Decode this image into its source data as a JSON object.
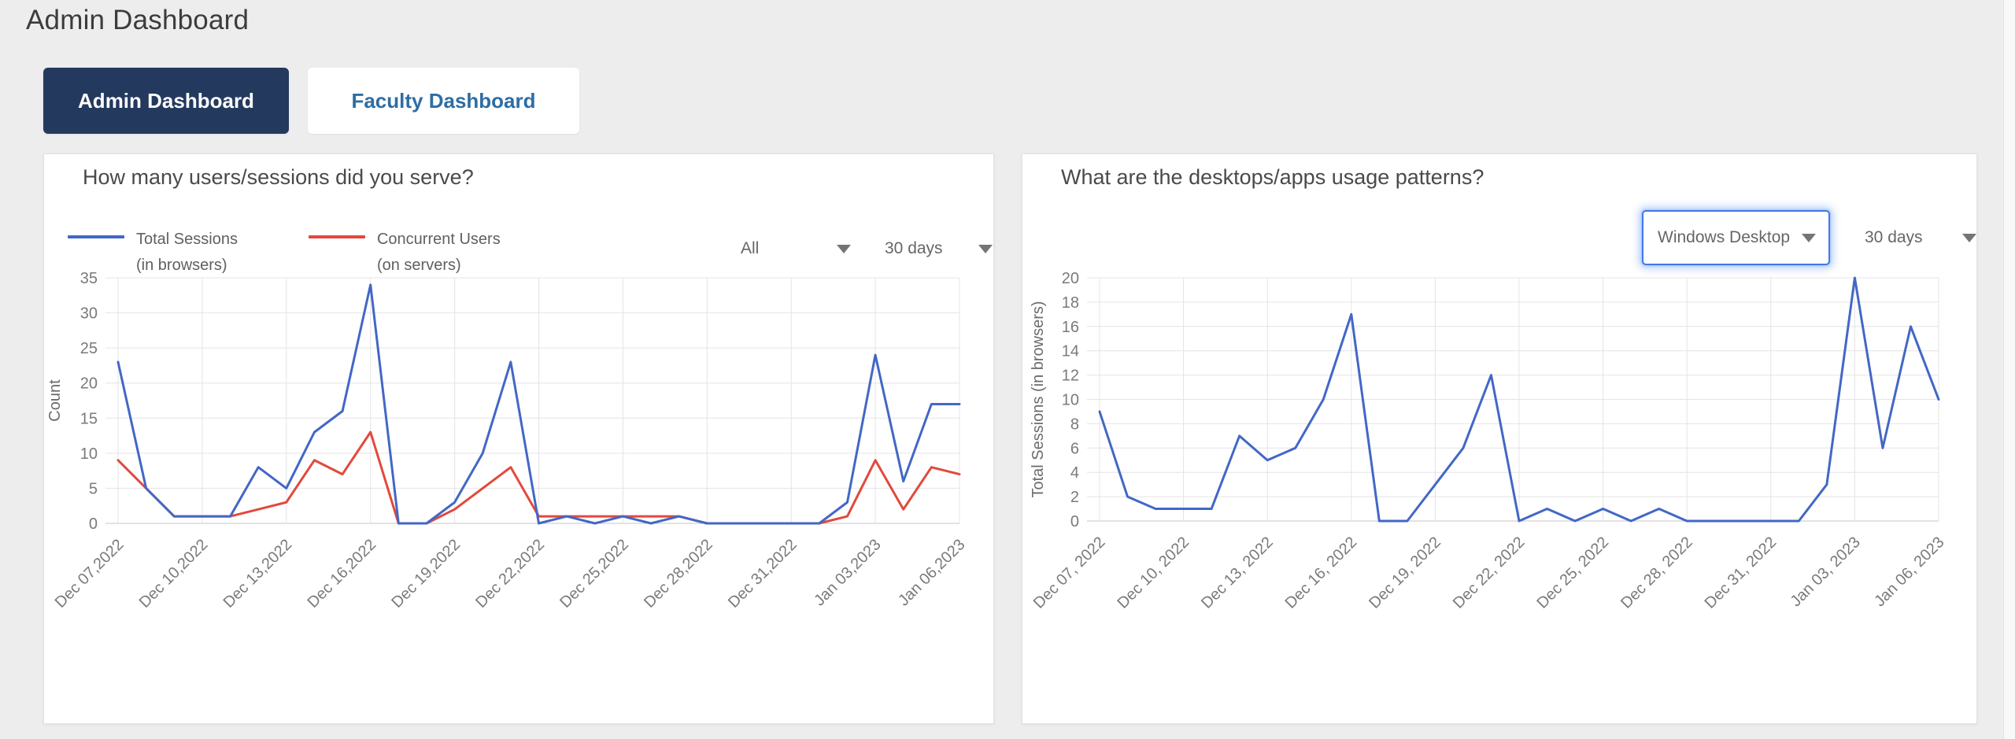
{
  "page": {
    "title": "Admin Dashboard",
    "background": "#EDEDED"
  },
  "tabs": [
    {
      "label": "Admin Dashboard",
      "active": true
    },
    {
      "label": "Faculty Dashboard",
      "active": false
    }
  ],
  "left_card": {
    "filters": {
      "scope": "All",
      "range": "30 days"
    }
  },
  "right_card": {
    "filters": {
      "desktop": "Windows Desktop",
      "range": "30 days"
    }
  },
  "colors": {
    "tab_active_bg": "#24395E",
    "tab_inactive_text": "#2E6DA4",
    "focus_ring": "#4285F4",
    "gridline": "#E4E4E4",
    "baseline": "#C6C6C6",
    "axis_text": "#7A7A7A"
  },
  "chart_data": [
    {
      "type": "line",
      "title": "How many users/sessions did you serve?",
      "ylabel": "Count",
      "ymax": 35,
      "ylim": [
        0,
        35
      ],
      "y_ticks": [
        0,
        5,
        10,
        15,
        20,
        25,
        30,
        35
      ],
      "grid": true,
      "legend_position": "top-left",
      "x_tick_interval_days": 3,
      "x_tick_labels": [
        "Dec 07,2022",
        "Dec 10,2022",
        "Dec 13,2022",
        "Dec 16,2022",
        "Dec 19,2022",
        "Dec 22,2022",
        "Dec 25,2022",
        "Dec 28,2022",
        "Dec 31,2022",
        "Jan 03,2023",
        "Jan 06,2023"
      ],
      "legend": [
        {
          "line1": "Total Sessions",
          "line2": "(in browsers)"
        },
        {
          "line1": "Concurrent Users",
          "line2": "(on servers)"
        }
      ],
      "series": [
        {
          "name": "Total Sessions (in browsers)",
          "color": "#4267C6",
          "values": [
            23,
            5,
            1,
            1,
            1,
            8,
            5,
            13,
            16,
            34,
            0,
            0,
            3,
            10,
            23,
            0,
            1,
            0,
            1,
            0,
            1,
            0,
            0,
            0,
            0,
            0,
            3,
            24,
            6,
            17,
            17
          ]
        },
        {
          "name": "Concurrent Users (on servers)",
          "color": "#E2493D",
          "values": [
            9,
            5,
            1,
            1,
            1,
            2,
            3,
            9,
            7,
            13,
            0,
            0,
            2,
            5,
            8,
            1,
            1,
            1,
            1,
            1,
            1,
            0,
            0,
            0,
            0,
            0,
            1,
            9,
            2,
            8,
            7
          ]
        }
      ]
    },
    {
      "type": "line",
      "title": "What are the desktops/apps usage patterns?",
      "ylabel": "Total Sessions (in browsers)",
      "ymax": 20,
      "ylim": [
        0,
        20
      ],
      "y_ticks": [
        0,
        2,
        4,
        6,
        8,
        10,
        12,
        14,
        16,
        18,
        20
      ],
      "grid": true,
      "legend_position": "none",
      "x_tick_interval_days": 3,
      "x_tick_labels": [
        "Dec 07, 2022",
        "Dec 10, 2022",
        "Dec 13, 2022",
        "Dec 16, 2022",
        "Dec 19, 2022",
        "Dec 22, 2022",
        "Dec 25, 2022",
        "Dec 28, 2022",
        "Dec 31, 2022",
        "Jan 03, 2023",
        "Jan 06, 2023"
      ],
      "series": [
        {
          "name": "Total Sessions (in browsers)",
          "color": "#4267C6",
          "values": [
            9,
            2,
            1,
            1,
            1,
            7,
            5,
            6,
            10,
            17,
            0,
            0,
            3,
            6,
            12,
            0,
            1,
            0,
            1,
            0,
            1,
            0,
            0,
            0,
            0,
            0,
            3,
            20,
            6,
            16,
            10
          ]
        }
      ]
    }
  ]
}
